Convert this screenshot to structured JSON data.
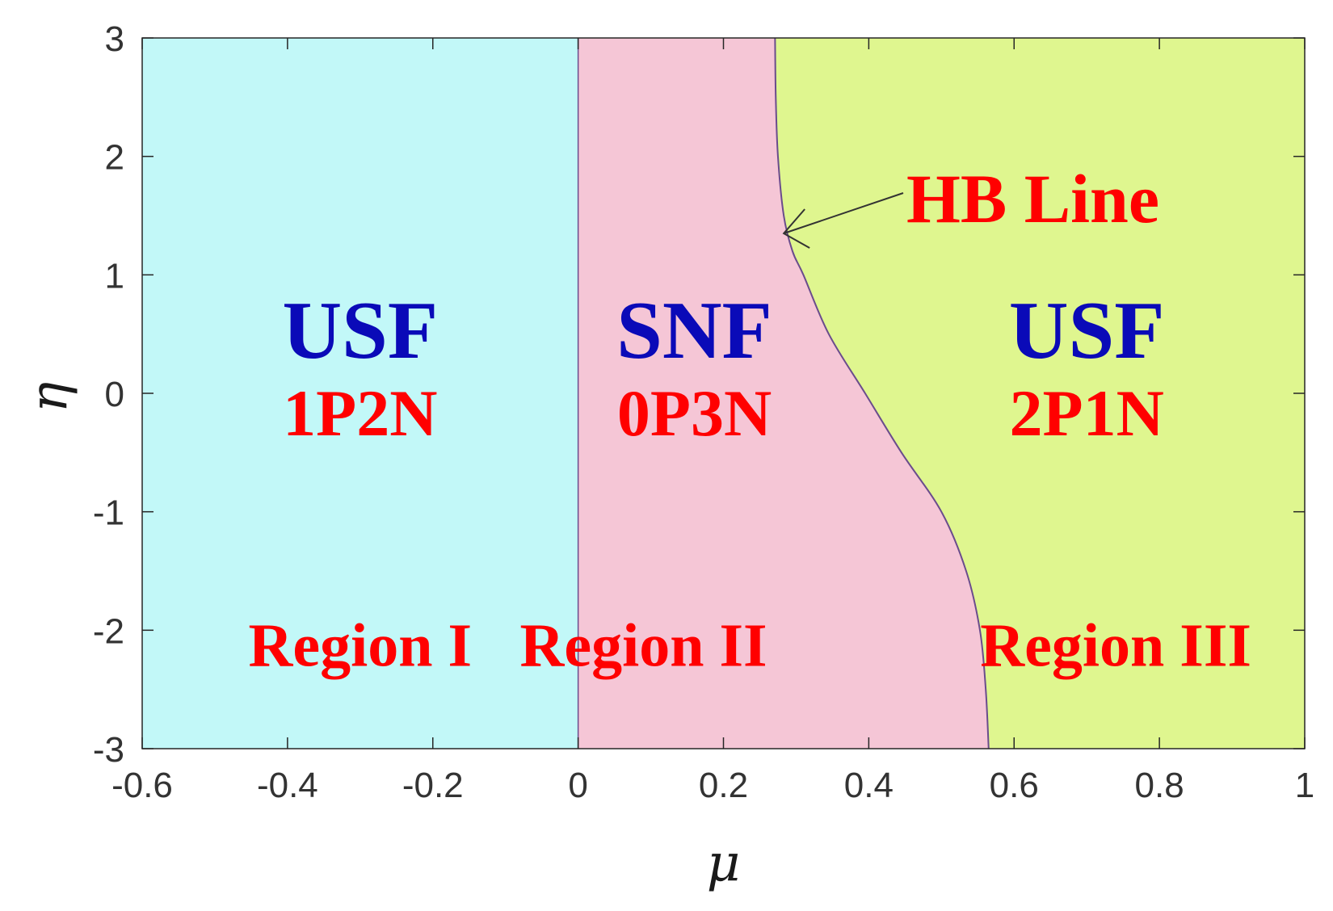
{
  "chart_data": {
    "type": "area",
    "xlabel": "μ",
    "ylabel": "η",
    "xlim": [
      -0.6,
      1
    ],
    "ylim": [
      -3,
      3
    ],
    "xticks": [
      -0.6,
      -0.4,
      -0.2,
      0,
      0.2,
      0.4,
      0.6,
      0.8,
      1
    ],
    "xtick_labels": [
      "-0.6",
      "-0.4",
      "-0.2",
      "0",
      "0.2",
      "0.4",
      "0.6",
      "0.8",
      "1"
    ],
    "yticks": [
      -3,
      -2,
      -1,
      0,
      1,
      2,
      3
    ],
    "ytick_labels": [
      "-3",
      "-2",
      "-1",
      "0",
      "1",
      "2",
      "3"
    ],
    "grid": false,
    "colors": {
      "region_1": "#c2f8f8",
      "region_2": "#f5c6d6",
      "region_3": "#dff68f",
      "boundary_line": "#6a4c8c",
      "label_blue": "#0a0ab8",
      "label_red": "#ff0000"
    },
    "boundaries": {
      "mu_zero_line": 0,
      "hb_line": {
        "eta": [
          3,
          2.5,
          2,
          1.5,
          1.2,
          1,
          0.5,
          0,
          -0.5,
          -1,
          -1.5,
          -2,
          -2.5,
          -3
        ],
        "mu": [
          0.271,
          0.272,
          0.275,
          0.283,
          0.295,
          0.31,
          0.345,
          0.395,
          0.445,
          0.5,
          0.534,
          0.553,
          0.561,
          0.565
        ]
      }
    },
    "regions": [
      {
        "name": "Region I",
        "type_label": "USF",
        "count_label": "1P2N",
        "mu_center": -0.3,
        "eta_center": 0.3
      },
      {
        "name": "Region II",
        "type_label": "SNF",
        "count_label": "0P3N",
        "mu_center": 0.16,
        "eta_center": 0.3
      },
      {
        "name": "Region III",
        "type_label": "USF",
        "count_label": "2P1N",
        "mu_center": 0.7,
        "eta_center": 0.3
      }
    ],
    "region_name_eta": -2.3,
    "region_name_mu": [
      -0.3,
      0.09,
      0.74
    ],
    "annotations": [
      {
        "text": "HB Line",
        "arrow_target": {
          "mu": 0.283,
          "eta": 1.35
        }
      }
    ]
  }
}
